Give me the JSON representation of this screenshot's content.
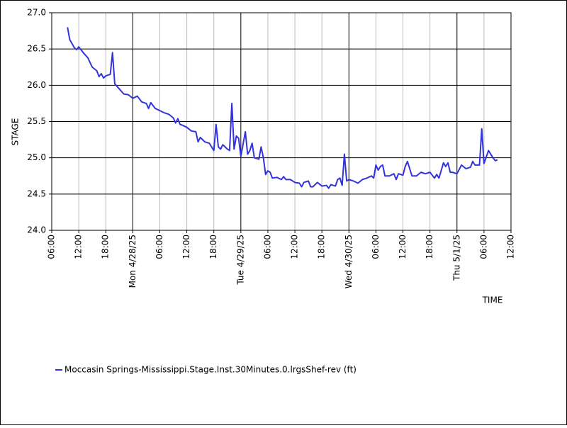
{
  "chart_data": {
    "type": "line",
    "x_label": "TIME",
    "y_label": "STAGE",
    "xlim": [
      "2025-04-27T06:00",
      "2025-05-01T12:00"
    ],
    "xticks": [
      {
        "value": "2025-04-27T06:00",
        "label": "06:00"
      },
      {
        "value": "2025-04-27T12:00",
        "label": "12:00"
      },
      {
        "value": "2025-04-27T18:00",
        "label": "18:00"
      },
      {
        "value": "2025-04-28T00:00",
        "label": "Mon 4/28/25"
      },
      {
        "value": "2025-04-28T06:00",
        "label": "06:00"
      },
      {
        "value": "2025-04-28T12:00",
        "label": "12:00"
      },
      {
        "value": "2025-04-28T18:00",
        "label": "18:00"
      },
      {
        "value": "2025-04-29T00:00",
        "label": "Tue 4/29/25"
      },
      {
        "value": "2025-04-29T06:00",
        "label": "06:00"
      },
      {
        "value": "2025-04-29T12:00",
        "label": "12:00"
      },
      {
        "value": "2025-04-29T18:00",
        "label": "18:00"
      },
      {
        "value": "2025-04-30T00:00",
        "label": "Wed 4/30/25"
      },
      {
        "value": "2025-04-30T06:00",
        "label": "06:00"
      },
      {
        "value": "2025-04-30T12:00",
        "label": "12:00"
      },
      {
        "value": "2025-04-30T18:00",
        "label": "18:00"
      },
      {
        "value": "2025-05-01T00:00",
        "label": "Thu 5/1/25"
      },
      {
        "value": "2025-05-01T06:00",
        "label": "06:00"
      },
      {
        "value": "2025-05-01T12:00",
        "label": "12:00"
      }
    ],
    "ylim": [
      24,
      27
    ],
    "yticks": [
      {
        "value": 24,
        "label": "24.0"
      },
      {
        "value": 24.5,
        "label": "24.5"
      },
      {
        "value": 25,
        "label": "25.0"
      },
      {
        "value": 25.5,
        "label": "25.5"
      },
      {
        "value": 26,
        "label": "26.0"
      },
      {
        "value": 26.5,
        "label": "26.5"
      },
      {
        "value": 27,
        "label": "27.0"
      }
    ],
    "grid": true,
    "legend": "bottom",
    "x": [
      "2025-04-27T09:30",
      "2025-04-27T10:00",
      "2025-04-27T11:00",
      "2025-04-27T11:30",
      "2025-04-27T12:00",
      "2025-04-27T13:00",
      "2025-04-27T14:00",
      "2025-04-27T15:00",
      "2025-04-27T16:00",
      "2025-04-27T16:30",
      "2025-04-27T17:00",
      "2025-04-27T17:30",
      "2025-04-27T18:00",
      "2025-04-27T19:00",
      "2025-04-27T19:30",
      "2025-04-27T20:00",
      "2025-04-27T21:00",
      "2025-04-27T22:00",
      "2025-04-27T23:00",
      "2025-04-28T00:00",
      "2025-04-28T01:00",
      "2025-04-28T02:00",
      "2025-04-28T03:00",
      "2025-04-28T03:30",
      "2025-04-28T04:00",
      "2025-04-28T05:00",
      "2025-04-28T06:00",
      "2025-04-28T07:00",
      "2025-04-28T08:00",
      "2025-04-28T09:00",
      "2025-04-28T09:30",
      "2025-04-28T10:00",
      "2025-04-28T10:30",
      "2025-04-28T11:00",
      "2025-04-28T12:00",
      "2025-04-28T13:00",
      "2025-04-28T14:00",
      "2025-04-28T14:30",
      "2025-04-28T15:00",
      "2025-04-28T16:00",
      "2025-04-28T17:00",
      "2025-04-28T18:00",
      "2025-04-28T18:30",
      "2025-04-28T19:00",
      "2025-04-28T19:30",
      "2025-04-28T20:00",
      "2025-04-28T21:00",
      "2025-04-28T21:30",
      "2025-04-28T22:00",
      "2025-04-28T22:30",
      "2025-04-28T23:00",
      "2025-04-28T23:30",
      "2025-04-29T00:00",
      "2025-04-29T01:00",
      "2025-04-29T01:30",
      "2025-04-29T02:00",
      "2025-04-29T02:30",
      "2025-04-29T03:00",
      "2025-04-29T04:00",
      "2025-04-29T04:30",
      "2025-04-29T05:00",
      "2025-04-29T05:30",
      "2025-04-29T06:00",
      "2025-04-29T06:30",
      "2025-04-29T07:00",
      "2025-04-29T08:00",
      "2025-04-29T09:00",
      "2025-04-29T09:30",
      "2025-04-29T10:00",
      "2025-04-29T11:00",
      "2025-04-29T12:00",
      "2025-04-29T13:00",
      "2025-04-29T13:30",
      "2025-04-29T14:00",
      "2025-04-29T15:00",
      "2025-04-29T15:30",
      "2025-04-29T16:00",
      "2025-04-29T17:00",
      "2025-04-29T18:00",
      "2025-04-29T19:00",
      "2025-04-29T19:30",
      "2025-04-29T20:00",
      "2025-04-29T21:00",
      "2025-04-29T21:30",
      "2025-04-29T22:00",
      "2025-04-29T22:30",
      "2025-04-29T23:00",
      "2025-04-29T23:30",
      "2025-04-30T00:00",
      "2025-04-30T01:00",
      "2025-04-30T02:00",
      "2025-04-30T03:00",
      "2025-04-30T04:00",
      "2025-04-30T05:00",
      "2025-04-30T05:30",
      "2025-04-30T06:00",
      "2025-04-30T06:30",
      "2025-04-30T07:00",
      "2025-04-30T07:30",
      "2025-04-30T08:00",
      "2025-04-30T09:00",
      "2025-04-30T10:00",
      "2025-04-30T10:30",
      "2025-04-30T11:00",
      "2025-04-30T12:00",
      "2025-04-30T12:30",
      "2025-04-30T13:00",
      "2025-04-30T14:00",
      "2025-04-30T15:00",
      "2025-04-30T16:00",
      "2025-04-30T17:00",
      "2025-04-30T18:00",
      "2025-04-30T19:00",
      "2025-04-30T19:30",
      "2025-04-30T20:00",
      "2025-04-30T21:00",
      "2025-04-30T21:30",
      "2025-04-30T22:00",
      "2025-04-30T22:30",
      "2025-04-30T23:00",
      "2025-05-01T00:00",
      "2025-05-01T00:30",
      "2025-05-01T01:00",
      "2025-05-01T02:00",
      "2025-05-01T03:00",
      "2025-05-01T03:30",
      "2025-05-01T04:00",
      "2025-05-01T05:00",
      "2025-05-01T05:30",
      "2025-05-01T06:00",
      "2025-05-01T07:00",
      "2025-05-01T08:00",
      "2025-05-01T08:30",
      "2025-05-01T09:00"
    ],
    "series": [
      {
        "name": "Moccasin Springs-Mississippi.Stage.Inst.30Minutes.0.lrgsShef-rev (ft)",
        "color": "#3333dd",
        "values": [
          26.8,
          26.63,
          26.52,
          26.49,
          26.53,
          26.45,
          26.38,
          26.25,
          26.2,
          26.12,
          26.16,
          26.1,
          26.13,
          26.15,
          26.45,
          26.02,
          25.95,
          25.88,
          25.87,
          25.82,
          25.85,
          25.77,
          25.75,
          25.68,
          25.76,
          25.68,
          25.65,
          25.62,
          25.6,
          25.55,
          25.48,
          25.54,
          25.46,
          25.45,
          25.42,
          25.37,
          25.36,
          25.22,
          25.28,
          25.22,
          25.2,
          25.1,
          25.46,
          25.15,
          25.12,
          25.18,
          25.12,
          25.1,
          25.75,
          25.12,
          25.3,
          25.27,
          25.02,
          25.36,
          25.05,
          25.1,
          25.2,
          25.0,
          24.98,
          25.15,
          25.0,
          24.77,
          24.82,
          24.8,
          24.72,
          24.73,
          24.7,
          24.74,
          24.7,
          24.7,
          24.66,
          24.65,
          24.6,
          24.66,
          24.68,
          24.6,
          24.6,
          24.66,
          24.61,
          24.62,
          24.58,
          24.63,
          24.61,
          24.7,
          24.72,
          24.62,
          25.05,
          24.68,
          24.7,
          24.68,
          24.65,
          24.7,
          24.72,
          24.75,
          24.72,
          24.9,
          24.83,
          24.88,
          24.9,
          24.75,
          24.75,
          24.78,
          24.7,
          24.78,
          24.76,
          24.88,
          24.95,
          24.75,
          24.75,
          24.8,
          24.78,
          24.8,
          24.72,
          24.77,
          24.72,
          24.93,
          24.88,
          24.93,
          24.8,
          24.8,
          24.78,
          24.84,
          24.9,
          24.85,
          24.87,
          24.95,
          24.9,
          24.9,
          25.4,
          24.92,
          25.1,
          25.0,
          24.96,
          24.97
        ]
      }
    ]
  }
}
